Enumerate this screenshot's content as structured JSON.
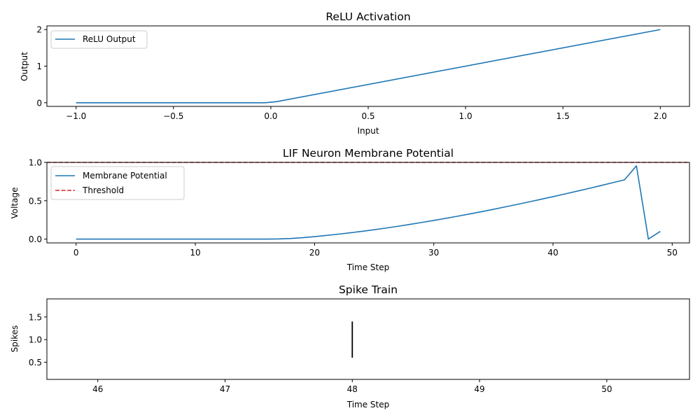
{
  "chart_data": [
    {
      "type": "line",
      "title": "ReLU Activation",
      "xlabel": "Input",
      "ylabel": "Output",
      "xlim": [
        -1.15,
        2.15
      ],
      "ylim": [
        -0.1,
        2.1
      ],
      "xticks": [
        -1.0,
        -0.5,
        0.0,
        0.5,
        1.0,
        1.5,
        2.0
      ],
      "xtick_labels": [
        "−1.0",
        "−0.5",
        "0.0",
        "0.5",
        "1.0",
        "1.5",
        "2.0"
      ],
      "yticks": [
        0,
        1,
        2
      ],
      "ytick_labels": [
        "0",
        "1",
        "2"
      ],
      "legend_position": "upper-left",
      "series": [
        {
          "name": "ReLU Output",
          "color": "#1f77b4",
          "style": "solid",
          "x": [
            -1.0,
            -0.0303,
            0.0303,
            2.0
          ],
          "y": [
            0,
            0,
            0.0303,
            2.0
          ]
        }
      ]
    },
    {
      "type": "line",
      "title": "LIF Neuron Membrane Potential",
      "xlabel": "Time Step",
      "ylabel": "Voltage",
      "xlim": [
        -2.45,
        51.45
      ],
      "ylim": [
        -0.05,
        1.0
      ],
      "xticks": [
        0,
        10,
        20,
        30,
        40,
        50
      ],
      "xtick_labels": [
        "0",
        "10",
        "20",
        "30",
        "40",
        "50"
      ],
      "yticks": [
        0.0,
        0.5,
        1.0
      ],
      "ytick_labels": [
        "0.0",
        "0.5",
        "1.0"
      ],
      "legend_position": "upper-left",
      "series": [
        {
          "name": "Membrane Potential",
          "color": "#1f77b4",
          "style": "solid",
          "x": [
            0,
            1,
            2,
            3,
            4,
            5,
            6,
            7,
            8,
            9,
            10,
            11,
            12,
            13,
            14,
            15,
            16,
            17,
            18,
            19,
            20,
            21,
            22,
            23,
            24,
            25,
            26,
            27,
            28,
            29,
            30,
            31,
            32,
            33,
            34,
            35,
            36,
            37,
            38,
            39,
            40,
            41,
            42,
            43,
            44,
            45,
            46,
            47,
            48,
            49
          ],
          "y": [
            0,
            0,
            0,
            0,
            0,
            0,
            0,
            0,
            0,
            0,
            0,
            0,
            0,
            0,
            0,
            0,
            0,
            0.002,
            0.008,
            0.018,
            0.032,
            0.048,
            0.064,
            0.082,
            0.101,
            0.122,
            0.144,
            0.167,
            0.191,
            0.217,
            0.243,
            0.27,
            0.298,
            0.327,
            0.357,
            0.388,
            0.42,
            0.452,
            0.485,
            0.519,
            0.553,
            0.588,
            0.624,
            0.66,
            0.697,
            0.735,
            0.773,
            0.955,
            0.0,
            0.1
          ]
        },
        {
          "name": "Threshold",
          "color": "#d62728",
          "style": "dashed",
          "x": [
            -2.45,
            51.45
          ],
          "y": [
            1.0,
            1.0
          ]
        }
      ]
    },
    {
      "type": "line",
      "title": "Spike Train",
      "xlabel": "Time Step",
      "ylabel": "Spikes",
      "xlim": [
        45.6,
        50.65
      ],
      "ylim": [
        0.12,
        1.9
      ],
      "xticks": [
        46,
        47,
        48,
        49,
        50
      ],
      "xtick_labels": [
        "46",
        "47",
        "48",
        "49",
        "50"
      ],
      "yticks": [
        0.5,
        1.0,
        1.5
      ],
      "ytick_labels": [
        "0.5",
        "1.0",
        "1.5"
      ],
      "series": [
        {
          "color": "#000000",
          "style": "eventplot",
          "x": [
            48
          ],
          "y_range": [
            0.6,
            1.4
          ]
        }
      ]
    }
  ]
}
